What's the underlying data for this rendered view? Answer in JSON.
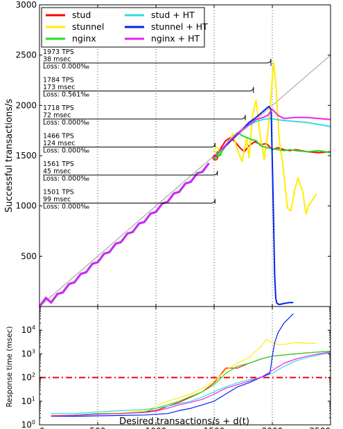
{
  "chart_data": [
    {
      "type": "line",
      "panel": "top",
      "ylabel": "Successful transactions/s",
      "xlim": [
        0,
        2500
      ],
      "ylim": [
        0,
        3000
      ],
      "xticks": [
        0,
        500,
        1000,
        1500,
        2000,
        2500
      ],
      "yticks": [
        500,
        1000,
        1500,
        2000,
        2500,
        3000
      ],
      "ytick_labels": [
        "500",
        "1000",
        "1500",
        "2000",
        "2500",
        "3000"
      ],
      "grid": "x-only, dotted",
      "legend": {
        "placement": "top-left",
        "columns": 2
      },
      "reference_line": {
        "name": "",
        "color": "#aaaaaa",
        "x": [
          0,
          2500
        ],
        "y": [
          0,
          2500
        ]
      },
      "series": [
        {
          "name": "stud",
          "color": "#ff0000",
          "x": [
            1500,
            1530,
            1560,
            1600,
            1640,
            1680,
            1720,
            1760,
            1800,
            1850,
            1900,
            1950,
            2000,
            2050,
            2100,
            2150,
            2200,
            2300,
            2400,
            2500
          ],
          "y": [
            1470,
            1500,
            1580,
            1650,
            1680,
            1640,
            1580,
            1540,
            1600,
            1640,
            1610,
            1620,
            1560,
            1580,
            1560,
            1550,
            1560,
            1540,
            1530,
            1540
          ]
        },
        {
          "name": "stunnel",
          "color": "#ffee00",
          "x": [
            1500,
            1540,
            1580,
            1620,
            1660,
            1700,
            1740,
            1780,
            1800,
            1830,
            1860,
            1890,
            1930,
            1960,
            1990,
            2010,
            2030,
            2060,
            2090,
            2110,
            2130,
            2160,
            2190,
            2220,
            2260,
            2290,
            2310,
            2340,
            2380
          ],
          "y": [
            1470,
            1520,
            1580,
            1620,
            1720,
            1560,
            1440,
            1680,
            1480,
            1900,
            2050,
            1750,
            1460,
            1720,
            2100,
            2430,
            2220,
            1650,
            1420,
            1200,
            980,
            950,
            1150,
            1280,
            1150,
            920,
            1000,
            1050,
            1120
          ]
        },
        {
          "name": "nginx",
          "color": "#22dd22",
          "x": [
            1500,
            1540,
            1580,
            1620,
            1660,
            1700,
            1740,
            1780,
            1820,
            1860,
            1900,
            1950,
            2000,
            2050,
            2100,
            2150,
            2200,
            2300,
            2400,
            2500
          ],
          "y": [
            1460,
            1500,
            1560,
            1640,
            1680,
            1730,
            1700,
            1680,
            1660,
            1650,
            1600,
            1580,
            1570,
            1560,
            1550,
            1560,
            1550,
            1540,
            1550,
            1530
          ]
        },
        {
          "name": "stud + HT",
          "color": "#33dddd",
          "x": [
            1500,
            1560,
            1620,
            1680,
            1740,
            1800,
            1860,
            1920,
            1980,
            2040,
            2100,
            2200,
            2300,
            2400,
            2500
          ],
          "y": [
            1470,
            1560,
            1620,
            1700,
            1760,
            1800,
            1840,
            1860,
            1870,
            1860,
            1850,
            1840,
            1830,
            1810,
            1790
          ]
        },
        {
          "name": "stunnel + HT",
          "color": "#0022ee",
          "x": [
            1500,
            1560,
            1620,
            1680,
            1740,
            1800,
            1860,
            1900,
            1940,
            1970,
            1990,
            2010,
            2020,
            2030,
            2040,
            2060,
            2100,
            2150,
            2180
          ],
          "y": [
            1480,
            1560,
            1620,
            1690,
            1760,
            1830,
            1880,
            1920,
            1960,
            1990,
            1960,
            900,
            300,
            80,
            30,
            20,
            30,
            40,
            40
          ]
        },
        {
          "name": "nginx + HT",
          "color": "#ee22ee",
          "x": [
            1500,
            1560,
            1620,
            1680,
            1740,
            1800,
            1860,
            1920,
            1960,
            2000,
            2050,
            2100,
            2200,
            2300,
            2400,
            2500
          ],
          "y": [
            1480,
            1560,
            1630,
            1700,
            1760,
            1810,
            1860,
            1880,
            1900,
            1960,
            1900,
            1870,
            1880,
            1880,
            1870,
            1860
          ]
        }
      ],
      "staircase": {
        "step_x": 100,
        "rise": 100,
        "note_series": "all series overlap below 1500"
      },
      "annotations": [
        {
          "tps": "1973 TPS",
          "latency": "38 msec",
          "loss": "Loss: 0.000‰",
          "x": 2000,
          "y": 2420
        },
        {
          "tps": "1784 TPS",
          "latency": "173 msec",
          "loss": "Loss: 0.561‰",
          "x": 1850,
          "y": 2150
        },
        {
          "tps": "1718 TPS",
          "latency": "72 msec",
          "loss": "Loss: 0.000‰",
          "x": 1780,
          "y": 1880
        },
        {
          "tps": "1466 TPS",
          "latency": "124 msec",
          "loss": "Loss: 0.000‰",
          "x": 1520,
          "y": 1600
        },
        {
          "tps": "1561 TPS",
          "latency": "45 msec",
          "loss": "Loss: 0.000‰",
          "x": 1540,
          "y": 1330
        },
        {
          "tps": "1501 TPS",
          "latency": "99 msec",
          "loss": "Loss: 0.000‰",
          "x": 1520,
          "y": 1050
        }
      ]
    },
    {
      "type": "line",
      "panel": "bottom",
      "xlabel": "Desired transactions/s + d(t)",
      "ylabel": "Response time (msec)",
      "yscale": "log",
      "xlim": [
        0,
        2500
      ],
      "ylim": [
        1,
        100000
      ],
      "xticks": [
        0,
        500,
        1000,
        1500,
        2000,
        2500
      ],
      "xtick_labels": [
        "0",
        "500",
        "1000",
        "1500",
        "2000",
        "2500"
      ],
      "yticks": [
        1,
        10,
        100,
        1000,
        10000
      ],
      "ytick_labels": [
        {
          "base": "10",
          "exp": "0"
        },
        {
          "base": "10",
          "exp": "1"
        },
        {
          "base": "10",
          "exp": "2"
        },
        {
          "base": "10",
          "exp": "3"
        },
        {
          "base": "10",
          "exp": "4"
        }
      ],
      "grid": "x-only, dotted",
      "threshold": {
        "y": 100,
        "color": "#ee0000",
        "style": "dash-dot"
      },
      "series": [
        {
          "name": "stud",
          "color": "#ff0000",
          "x": [
            100,
            300,
            500,
            700,
            900,
            1000,
            1100,
            1200,
            1300,
            1400,
            1500,
            1600,
            1700,
            1800,
            1900,
            2000,
            2100,
            2200,
            2300,
            2400,
            2500
          ],
          "y": [
            2.5,
            2.5,
            3,
            3,
            3.5,
            4,
            6,
            9,
            15,
            25,
            60,
            250,
            250,
            400,
            600,
            800,
            900,
            1000,
            1100,
            1200,
            1300
          ]
        },
        {
          "name": "stunnel",
          "color": "#ffee00",
          "x": [
            100,
            300,
            500,
            700,
            900,
            1000,
            1100,
            1200,
            1300,
            1400,
            1500,
            1600,
            1700,
            1800,
            1900,
            1950,
            2000,
            2050,
            2100,
            2200,
            2300,
            2380
          ],
          "y": [
            2.5,
            2.6,
            3,
            3.2,
            4,
            6,
            10,
            14,
            20,
            35,
            70,
            200,
            400,
            700,
            2000,
            4000,
            3000,
            2500,
            2500,
            3000,
            2800,
            2800
          ]
        },
        {
          "name": "nginx",
          "color": "#22dd22",
          "x": [
            100,
            300,
            500,
            700,
            900,
            1000,
            1100,
            1200,
            1300,
            1400,
            1500,
            1600,
            1700,
            1800,
            1900,
            2000,
            2100,
            2200,
            2300,
            2400,
            2500
          ],
          "y": [
            2.4,
            2.6,
            3,
            3,
            3.5,
            5,
            7,
            10,
            16,
            25,
            50,
            150,
            300,
            400,
            600,
            800,
            900,
            1000,
            1100,
            1200,
            1300
          ]
        },
        {
          "name": "stud + HT",
          "color": "#33dddd",
          "x": [
            100,
            300,
            500,
            700,
            900,
            1000,
            1100,
            1200,
            1300,
            1400,
            1500,
            1600,
            1700,
            1800,
            1900,
            2000,
            2100,
            2200,
            2300,
            2400,
            2500
          ],
          "y": [
            3,
            3,
            3.5,
            4,
            4.5,
            5,
            6,
            8,
            10,
            15,
            25,
            40,
            60,
            80,
            100,
            150,
            300,
            500,
            700,
            900,
            1100
          ]
        },
        {
          "name": "stunnel + HT",
          "color": "#0022ee",
          "x": [
            100,
            300,
            500,
            700,
            900,
            1000,
            1100,
            1200,
            1300,
            1400,
            1500,
            1600,
            1700,
            1800,
            1900,
            1980,
            2000,
            2020,
            2050,
            2100,
            2150,
            2180
          ],
          "y": [
            2.3,
            2.3,
            2.4,
            2.5,
            2.6,
            2.8,
            3,
            4,
            5,
            7,
            10,
            20,
            40,
            60,
            100,
            150,
            800,
            3000,
            8000,
            20000,
            35000,
            50000
          ]
        },
        {
          "name": "nginx + HT",
          "color": "#ee22ee",
          "x": [
            100,
            300,
            500,
            700,
            900,
            1000,
            1100,
            1200,
            1300,
            1400,
            1500,
            1600,
            1700,
            1800,
            1900,
            2000,
            2100,
            2200,
            2300,
            2400,
            2500
          ],
          "y": [
            2.4,
            2.5,
            2.8,
            3,
            3.3,
            3.8,
            5,
            7,
            9,
            12,
            20,
            35,
            50,
            70,
            100,
            200,
            400,
            600,
            800,
            1000,
            1200
          ]
        }
      ]
    }
  ]
}
